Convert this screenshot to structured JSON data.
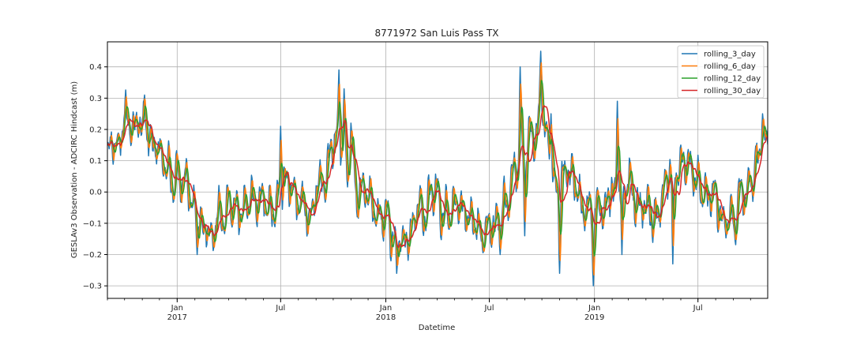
{
  "chart_data": {
    "type": "line",
    "title": "8771972 San Luis Pass TX",
    "xlabel": "Datetime",
    "ylabel": "GESLAv3 Observation - ADCIRC Hindcast (m)",
    "ylim": [
      -0.34,
      0.48
    ],
    "xlim": [
      "2016-09-01",
      "2019-10-31"
    ],
    "grid": true,
    "legend_position": "top-right",
    "y_ticks": [
      -0.3,
      -0.2,
      -0.1,
      0.0,
      0.1,
      0.2,
      0.3,
      0.4
    ],
    "y_tick_labels": [
      "−0.3",
      "−0.2",
      "−0.1",
      "0.0",
      "0.1",
      "0.2",
      "0.3",
      "0.4"
    ],
    "x_major_ticks": [
      {
        "date": "2017-01-01",
        "label": "Jan",
        "year": "2017"
      },
      {
        "date": "2017-07-01",
        "label": "Jul",
        "year": ""
      },
      {
        "date": "2018-01-01",
        "label": "Jan",
        "year": "2018"
      },
      {
        "date": "2018-07-01",
        "label": "Jul",
        "year": ""
      },
      {
        "date": "2019-01-01",
        "label": "Jan",
        "year": "2019"
      },
      {
        "date": "2019-07-01",
        "label": "Jul",
        "year": ""
      }
    ],
    "series": [
      {
        "name": "rolling_3_day",
        "color": "#1f77b4",
        "smooth": 3
      },
      {
        "name": "rolling_6_day",
        "color": "#ff7f0e",
        "smooth": 6
      },
      {
        "name": "rolling_12_day",
        "color": "#2ca02c",
        "smooth": 12
      },
      {
        "name": "rolling_30_day",
        "color": "#d62728",
        "smooth": 30
      }
    ],
    "base_curve": {
      "x": [
        "2016-09-01",
        "2016-09-15",
        "2016-10-01",
        "2016-10-15",
        "2016-11-01",
        "2016-11-15",
        "2016-12-01",
        "2016-12-15",
        "2017-01-01",
        "2017-01-15",
        "2017-02-01",
        "2017-02-15",
        "2017-03-01",
        "2017-03-15",
        "2017-04-01",
        "2017-04-15",
        "2017-05-01",
        "2017-05-15",
        "2017-06-01",
        "2017-06-15",
        "2017-07-01",
        "2017-07-15",
        "2017-08-01",
        "2017-08-15",
        "2017-09-01",
        "2017-09-15",
        "2017-10-01",
        "2017-10-15",
        "2017-11-01",
        "2017-11-15",
        "2017-12-01",
        "2017-12-15",
        "2018-01-01",
        "2018-01-15",
        "2018-02-01",
        "2018-02-15",
        "2018-03-01",
        "2018-03-15",
        "2018-04-01",
        "2018-04-15",
        "2018-05-01",
        "2018-05-15",
        "2018-06-01",
        "2018-06-15",
        "2018-07-01",
        "2018-07-15",
        "2018-08-01",
        "2018-08-15",
        "2018-09-01",
        "2018-09-15",
        "2018-10-01",
        "2018-10-15",
        "2018-11-01",
        "2018-11-15",
        "2018-12-01",
        "2018-12-15",
        "2019-01-01",
        "2019-01-15",
        "2019-02-01",
        "2019-02-15",
        "2019-03-01",
        "2019-03-15",
        "2019-04-01",
        "2019-04-15",
        "2019-05-01",
        "2019-05-15",
        "2019-06-01",
        "2019-06-15",
        "2019-07-01",
        "2019-07-15",
        "2019-08-01",
        "2019-08-15",
        "2019-09-01",
        "2019-09-15",
        "2019-10-01",
        "2019-10-15",
        "2019-10-31"
      ],
      "y": [
        0.1,
        0.17,
        0.2,
        0.22,
        0.21,
        0.15,
        0.1,
        0.06,
        0.04,
        0.02,
        -0.06,
        -0.13,
        -0.14,
        -0.08,
        -0.02,
        -0.02,
        -0.03,
        -0.02,
        -0.03,
        -0.05,
        -0.01,
        0.03,
        -0.03,
        -0.07,
        0.02,
        0.08,
        0.15,
        0.2,
        0.1,
        -0.02,
        0.0,
        -0.06,
        -0.1,
        -0.15,
        -0.17,
        -0.11,
        -0.04,
        -0.05,
        -0.03,
        -0.06,
        -0.09,
        -0.11,
        -0.12,
        -0.15,
        -0.13,
        -0.09,
        -0.02,
        0.05,
        0.1,
        0.2,
        0.24,
        0.1,
        0.03,
        0.02,
        -0.02,
        -0.03,
        -0.05,
        -0.04,
        -0.03,
        0.04,
        0.03,
        -0.03,
        -0.06,
        -0.07,
        0.02,
        0.09,
        0.08,
        0.03,
        0.01,
        0.0,
        -0.04,
        -0.08,
        -0.05,
        -0.02,
        0.04,
        0.09,
        0.14
      ]
    },
    "spikes": [
      {
        "date": "2016-11-05",
        "value": 0.31
      },
      {
        "date": "2017-02-05",
        "value": -0.2
      },
      {
        "date": "2017-07-01",
        "value": 0.21
      },
      {
        "date": "2017-10-11",
        "value": 0.39
      },
      {
        "date": "2017-10-20",
        "value": 0.33
      },
      {
        "date": "2017-11-01",
        "value": 0.22
      },
      {
        "date": "2018-01-20",
        "value": -0.26
      },
      {
        "date": "2018-01-10",
        "value": -0.22
      },
      {
        "date": "2018-07-20",
        "value": -0.2
      },
      {
        "date": "2018-08-24",
        "value": 0.4
      },
      {
        "date": "2018-09-01",
        "value": -0.14
      },
      {
        "date": "2018-09-29",
        "value": 0.45
      },
      {
        "date": "2018-10-17",
        "value": 0.25
      },
      {
        "date": "2018-11-01",
        "value": -0.26
      },
      {
        "date": "2018-12-30",
        "value": -0.3
      },
      {
        "date": "2019-02-10",
        "value": 0.29
      },
      {
        "date": "2019-02-18",
        "value": -0.2
      },
      {
        "date": "2019-05-18",
        "value": -0.23
      },
      {
        "date": "2019-06-01",
        "value": 0.15
      },
      {
        "date": "2019-10-22",
        "value": 0.25
      }
    ]
  }
}
